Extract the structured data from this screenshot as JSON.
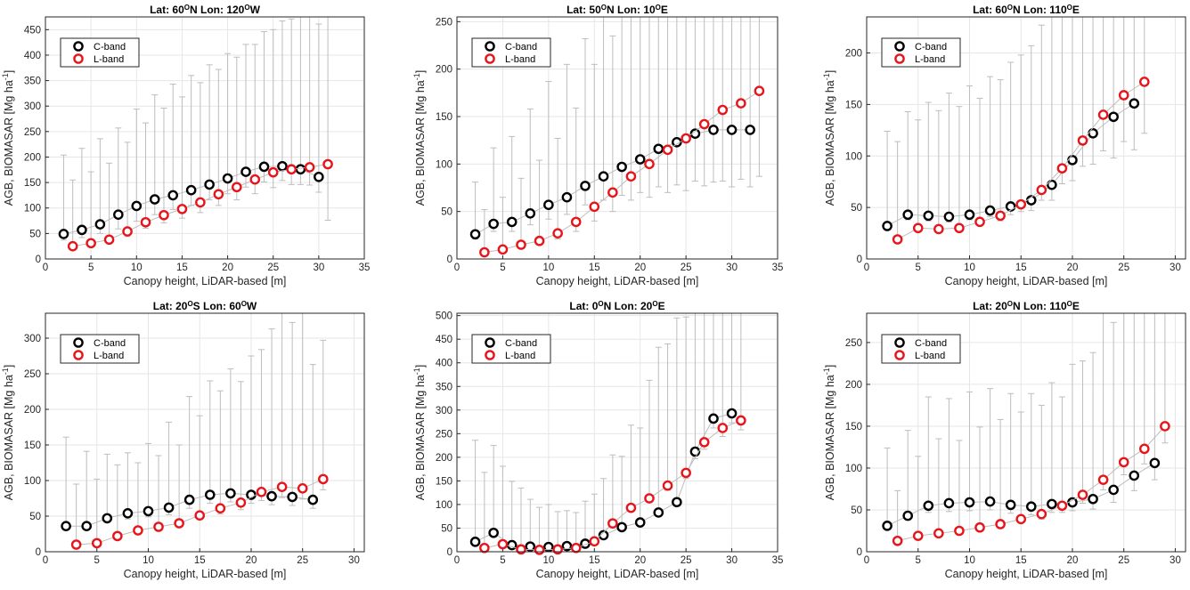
{
  "chart_data": [
    {
      "type": "scatter",
      "title": "Lat: 60°N Lon: 120°W",
      "title_parts": [
        "Lat: 60",
        "O",
        "N Lon: 120",
        "O",
        "W"
      ],
      "xlabel": "Canopy height, LiDAR-based  [m]",
      "ylabel": "AGB, BIOMASAR  [Mg ha",
      "ylabel_sup": "-1",
      "ylabel_end": "]",
      "xlim": [
        0,
        35
      ],
      "ylim": [
        0,
        475
      ],
      "xticks": [
        "0",
        "5",
        "10",
        "15",
        "20",
        "25",
        "30",
        "35"
      ],
      "yticks": [
        "0",
        "50",
        "100",
        "150",
        "200",
        "250",
        "300",
        "350",
        "400",
        "450"
      ],
      "grid": true,
      "legend_position": "top-left",
      "series": [
        {
          "name": "C-band",
          "color": "#000000",
          "x": [
            2,
            4,
            6,
            8,
            10,
            12,
            14,
            16,
            18,
            20,
            22,
            24,
            26,
            28,
            30
          ],
          "y": [
            49,
            57,
            68,
            87,
            104,
            117,
            125,
            135,
            146,
            158,
            171,
            181,
            182,
            176,
            161
          ],
          "err_lo": [
            12,
            15,
            18,
            28,
            30,
            30,
            28,
            30,
            30,
            30,
            30,
            30,
            28,
            30,
            30
          ],
          "err_hi": [
            155,
            160,
            168,
            170,
            190,
            205,
            218,
            225,
            235,
            245,
            250,
            265,
            285,
            315,
            300
          ]
        },
        {
          "name": "L-band",
          "color": "#e8141b",
          "x": [
            3,
            5,
            7,
            9,
            11,
            13,
            15,
            17,
            19,
            21,
            23,
            25,
            27,
            29,
            31
          ],
          "y": [
            25,
            31,
            38,
            54,
            72,
            86,
            98,
            111,
            127,
            141,
            156,
            170,
            176,
            180,
            186
          ],
          "err_lo": [
            3,
            5,
            7,
            10,
            12,
            15,
            18,
            20,
            22,
            25,
            28,
            30,
            30,
            35,
            110
          ],
          "err_hi": [
            130,
            140,
            150,
            175,
            195,
            210,
            220,
            235,
            245,
            255,
            265,
            280,
            295,
            310,
            365
          ]
        }
      ]
    },
    {
      "type": "scatter",
      "title": "Lat: 50°N Lon: 10°E",
      "title_parts": [
        "Lat: 50",
        "O",
        "N Lon: 10",
        "O",
        "E"
      ],
      "xlabel": "Canopy height, LiDAR-based  [m]",
      "ylabel": "AGB, BIOMASAR  [Mg ha",
      "ylabel_sup": "-1",
      "ylabel_end": "]",
      "xlim": [
        0,
        35
      ],
      "ylim": [
        0,
        255
      ],
      "xticks": [
        "0",
        "5",
        "10",
        "15",
        "20",
        "25",
        "30",
        "35"
      ],
      "yticks": [
        "0",
        "50",
        "100",
        "150",
        "200",
        "250"
      ],
      "grid": true,
      "legend_position": "top-left",
      "series": [
        {
          "name": "C-band",
          "color": "#000000",
          "x": [
            2,
            4,
            6,
            8,
            10,
            12,
            14,
            16,
            18,
            20,
            22,
            24,
            26,
            28,
            30,
            32
          ],
          "y": [
            26,
            37,
            39,
            48,
            57,
            65,
            77,
            87,
            97,
            105,
            116,
            123,
            132,
            136,
            136,
            136
          ],
          "err_lo": [
            5,
            8,
            10,
            12,
            15,
            18,
            20,
            25,
            30,
            35,
            40,
            45,
            50,
            55,
            60,
            60
          ],
          "err_hi": [
            55,
            80,
            90,
            110,
            130,
            140,
            155,
            170,
            185,
            195,
            210,
            225,
            240,
            255,
            255,
            255
          ]
        },
        {
          "name": "L-band",
          "color": "#e8141b",
          "x": [
            3,
            5,
            7,
            9,
            11,
            13,
            15,
            17,
            19,
            21,
            23,
            25,
            27,
            29,
            31,
            33
          ],
          "y": [
            7,
            10,
            15,
            19,
            27,
            39,
            55,
            70,
            87,
            100,
            115,
            127,
            142,
            157,
            164,
            177
          ],
          "err_lo": [
            1,
            2,
            3,
            4,
            6,
            10,
            15,
            20,
            25,
            35,
            45,
            55,
            65,
            75,
            80,
            90
          ],
          "err_hi": [
            45,
            55,
            70,
            85,
            100,
            120,
            150,
            165,
            180,
            200,
            225,
            240,
            255,
            255,
            255,
            255
          ]
        }
      ]
    },
    {
      "type": "scatter",
      "title": "Lat: 60°N Lon: 110°E",
      "title_parts": [
        "Lat: 60",
        "O",
        "N Lon: 110",
        "O",
        "E"
      ],
      "xlabel": "Canopy height, LiDAR-based  [m]",
      "ylabel": "AGB, BIOMASAR  [Mg ha",
      "ylabel_sup": "-1",
      "ylabel_end": "]",
      "xlim": [
        0,
        31
      ],
      "ylim": [
        0,
        235
      ],
      "xticks": [
        "0",
        "5",
        "10",
        "15",
        "20",
        "25",
        "30"
      ],
      "yticks": [
        "0",
        "50",
        "100",
        "150",
        "200"
      ],
      "grid": true,
      "legend_position": "top-left",
      "series": [
        {
          "name": "C-band",
          "color": "#000000",
          "x": [
            2,
            4,
            6,
            8,
            10,
            12,
            14,
            16,
            18,
            20,
            22,
            24,
            26
          ],
          "y": [
            32,
            43,
            42,
            41,
            43,
            47,
            51,
            57,
            72,
            96,
            122,
            138,
            151
          ],
          "err_lo": [
            3,
            5,
            5,
            5,
            5,
            6,
            8,
            10,
            15,
            20,
            30,
            40,
            45
          ],
          "err_hi": [
            92,
            100,
            110,
            120,
            125,
            130,
            140,
            150,
            175,
            200,
            220,
            230,
            230
          ]
        },
        {
          "name": "L-band",
          "color": "#e8141b",
          "x": [
            3,
            5,
            7,
            9,
            11,
            13,
            15,
            17,
            19,
            21,
            23,
            25,
            27
          ],
          "y": [
            19,
            30,
            29,
            30,
            36,
            42,
            53,
            67,
            88,
            115,
            140,
            159,
            172
          ],
          "err_lo": [
            2,
            3,
            3,
            3,
            4,
            5,
            7,
            10,
            15,
            25,
            35,
            45,
            50
          ],
          "err_hi": [
            95,
            105,
            115,
            118,
            120,
            132,
            145,
            160,
            185,
            205,
            215,
            228,
            232
          ]
        }
      ]
    },
    {
      "type": "scatter",
      "title": "Lat: 20°S Lon: 60°W",
      "title_parts": [
        "Lat: 20",
        "O",
        "S Lon: 60",
        "O",
        "W"
      ],
      "xlabel": "Canopy height, LiDAR-based  [m]",
      "ylabel": "AGB, BIOMASAR  [Mg ha",
      "ylabel_sup": "-1",
      "ylabel_end": "]",
      "xlim": [
        0,
        31
      ],
      "ylim": [
        0,
        335
      ],
      "xticks": [
        "0",
        "5",
        "10",
        "15",
        "20",
        "25",
        "30"
      ],
      "yticks": [
        "0",
        "50",
        "100",
        "150",
        "200",
        "250",
        "300"
      ],
      "grid": true,
      "legend_position": "top-left",
      "series": [
        {
          "name": "C-band",
          "color": "#000000",
          "x": [
            2,
            4,
            6,
            8,
            10,
            12,
            14,
            16,
            18,
            20,
            22,
            24,
            26
          ],
          "y": [
            36,
            36,
            47,
            54,
            57,
            62,
            73,
            80,
            82,
            80,
            78,
            77,
            73
          ],
          "err_lo": [
            3,
            3,
            5,
            8,
            8,
            10,
            12,
            12,
            12,
            12,
            12,
            12,
            12
          ],
          "err_hi": [
            125,
            105,
            90,
            85,
            95,
            120,
            145,
            160,
            175,
            195,
            235,
            245,
            190
          ]
        },
        {
          "name": "L-band",
          "color": "#e8141b",
          "x": [
            3,
            5,
            7,
            9,
            11,
            13,
            15,
            17,
            19,
            21,
            23,
            25,
            27
          ],
          "y": [
            10,
            12,
            22,
            30,
            35,
            40,
            51,
            61,
            69,
            84,
            91,
            89,
            102
          ],
          "err_lo": [
            1,
            1,
            2,
            3,
            4,
            5,
            6,
            8,
            10,
            12,
            15,
            15,
            15
          ],
          "err_hi": [
            85,
            90,
            100,
            95,
            100,
            110,
            140,
            165,
            170,
            200,
            275,
            315,
            195
          ]
        }
      ]
    },
    {
      "type": "scatter",
      "title": "Lat: 0°N Lon: 20°E",
      "title_parts": [
        "Lat: 0",
        "O",
        "N Lon: 20",
        "O",
        "E"
      ],
      "xlabel": "Canopy height, LiDAR-based  [m]",
      "ylabel": "AGB, BIOMASAR  [Mg ha",
      "ylabel_sup": "-1",
      "ylabel_end": "]",
      "xlim": [
        0,
        35
      ],
      "ylim": [
        0,
        505
      ],
      "xticks": [
        "0",
        "5",
        "10",
        "15",
        "20",
        "25",
        "30",
        "35"
      ],
      "yticks": [
        "0",
        "50",
        "100",
        "150",
        "200",
        "250",
        "300",
        "350",
        "400",
        "450",
        "500"
      ],
      "grid": true,
      "legend_position": "top-left",
      "series": [
        {
          "name": "C-band",
          "color": "#000000",
          "x": [
            2,
            4,
            6,
            8,
            10,
            12,
            14,
            16,
            18,
            20,
            22,
            24,
            26,
            28,
            30
          ],
          "y": [
            21,
            40,
            14,
            11,
            10,
            12,
            17,
            35,
            52,
            62,
            83,
            105,
            212,
            282,
            293
          ],
          "err_lo": [
            1,
            2,
            1,
            1,
            1,
            1,
            1,
            2,
            3,
            4,
            6,
            8,
            15,
            20,
            20
          ],
          "err_hi": [
            215,
            185,
            135,
            100,
            90,
            75,
            90,
            120,
            150,
            200,
            350,
            390,
            450,
            460,
            490
          ]
        },
        {
          "name": "L-band",
          "color": "#e8141b",
          "x": [
            3,
            5,
            7,
            9,
            11,
            13,
            15,
            17,
            19,
            21,
            23,
            25,
            27,
            29,
            31
          ],
          "y": [
            8,
            16,
            5,
            4,
            5,
            8,
            22,
            60,
            93,
            113,
            140,
            167,
            232,
            262,
            278
          ],
          "err_lo": [
            0,
            1,
            0,
            0,
            0,
            0,
            1,
            3,
            5,
            8,
            10,
            12,
            15,
            18,
            20
          ],
          "err_hi": [
            160,
            165,
            130,
            90,
            80,
            75,
            100,
            145,
            175,
            250,
            300,
            330,
            400,
            420,
            480
          ]
        }
      ]
    },
    {
      "type": "scatter",
      "title": "Lat: 20°N Lon: 110°E",
      "title_parts": [
        "Lat: 20",
        "O",
        "N Lon: 110",
        "O",
        "E"
      ],
      "xlabel": "Canopy height, LiDAR-based  [m]",
      "ylabel": "AGB, BIOMASAR  [Mg ha",
      "ylabel_sup": "-1",
      "ylabel_end": "]",
      "xlim": [
        0,
        31
      ],
      "ylim": [
        0,
        285
      ],
      "xticks": [
        "0",
        "5",
        "10",
        "15",
        "20",
        "25",
        "30"
      ],
      "yticks": [
        "0",
        "50",
        "100",
        "150",
        "200",
        "250"
      ],
      "grid": true,
      "legend_position": "top-left",
      "series": [
        {
          "name": "C-band",
          "color": "#000000",
          "x": [
            2,
            4,
            6,
            8,
            10,
            12,
            14,
            16,
            18,
            20,
            22,
            24,
            26,
            28
          ],
          "y": [
            31,
            43,
            55,
            58,
            59,
            60,
            56,
            54,
            57,
            59,
            63,
            74,
            91,
            106
          ],
          "err_lo": [
            3,
            5,
            8,
            10,
            10,
            10,
            10,
            10,
            10,
            10,
            12,
            15,
            18,
            20
          ],
          "err_hi": [
            93,
            102,
            130,
            125,
            132,
            135,
            133,
            135,
            145,
            165,
            175,
            200,
            225,
            230
          ]
        },
        {
          "name": "L-band",
          "color": "#e8141b",
          "x": [
            3,
            5,
            7,
            9,
            11,
            13,
            15,
            17,
            19,
            21,
            23,
            25,
            27,
            29
          ],
          "y": [
            13,
            19,
            22,
            25,
            29,
            33,
            39,
            45,
            55,
            68,
            86,
            107,
            123,
            150
          ],
          "err_lo": [
            1,
            2,
            3,
            3,
            4,
            4,
            5,
            6,
            8,
            10,
            12,
            15,
            18,
            20
          ],
          "err_hi": [
            60,
            95,
            113,
            108,
            120,
            125,
            128,
            130,
            130,
            160,
            200,
            222,
            250,
            267
          ]
        }
      ]
    }
  ]
}
